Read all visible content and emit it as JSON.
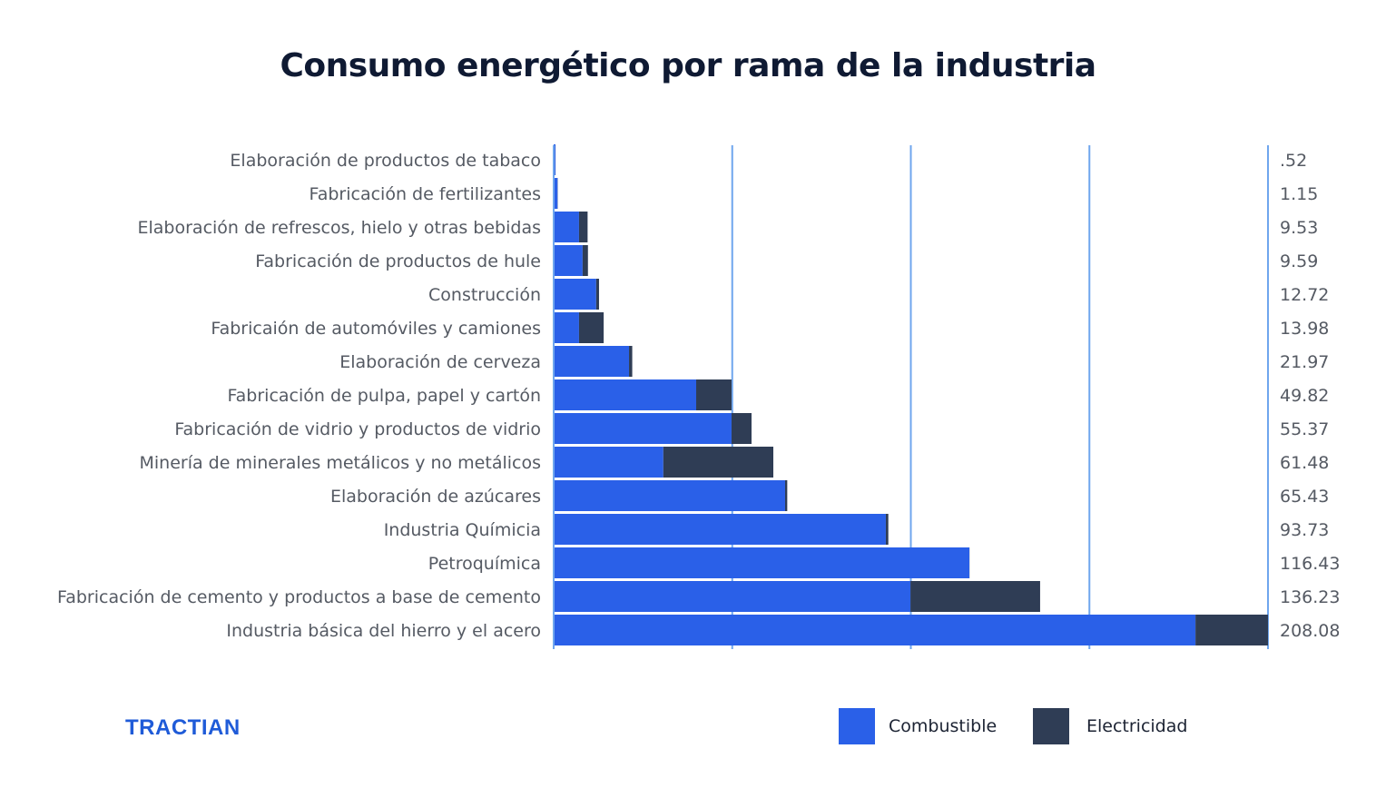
{
  "chart_data": {
    "type": "bar",
    "orientation": "horizontal",
    "stacked": true,
    "title": "Consumo energético por rama de la industria",
    "categories": [
      "Elaboración de productos de tabaco",
      "Fabricación de fertilizantes",
      "Elaboración de refrescos, hielo y otras bebidas",
      "Fabricación de productos de hule",
      "Construcción",
      "Fabricaión de automóviles y camiones",
      "Elaboración de cerveza",
      "Fabricación de pulpa, papel y cartón",
      "Fabricación de vidrio y productos de vidrio",
      "Minería de minerales metálicos y no metálicos",
      "Elaboración de azúcares",
      "Industria Químicia",
      "Petroquímica",
      "Fabricación de cemento y productos a base de cemento",
      "Industria básica del hierro y el acero"
    ],
    "totals": [
      ".52",
      "1.15",
      "9.53",
      "9.59",
      "12.72",
      "13.98",
      "21.97",
      "49.82",
      "55.37",
      "61.48",
      "65.43",
      "93.73",
      "116.43",
      "136.23",
      "208.08"
    ],
    "series": [
      {
        "name": "Combustible",
        "color": "#2a60e8",
        "values": [
          0.5,
          1.1,
          7.1,
          8.1,
          11.9,
          7.1,
          21.1,
          39.9,
          49.8,
          30.7,
          64.8,
          93.0,
          116.4,
          99.9,
          179.7
        ]
      },
      {
        "name": "Electricidad",
        "color": "#2f3d55",
        "values": [
          0.02,
          0.05,
          2.4,
          1.5,
          0.8,
          6.9,
          0.9,
          9.9,
          5.6,
          30.8,
          0.6,
          0.7,
          0.03,
          36.3,
          28.4
        ]
      }
    ],
    "xlim": [
      0,
      200
    ],
    "gridlines": [
      50,
      100,
      150,
      200
    ],
    "grid": true,
    "grid_color": "#6fa6ee",
    "legend_position": "bottom-right"
  },
  "brand": "TRACTIAN"
}
